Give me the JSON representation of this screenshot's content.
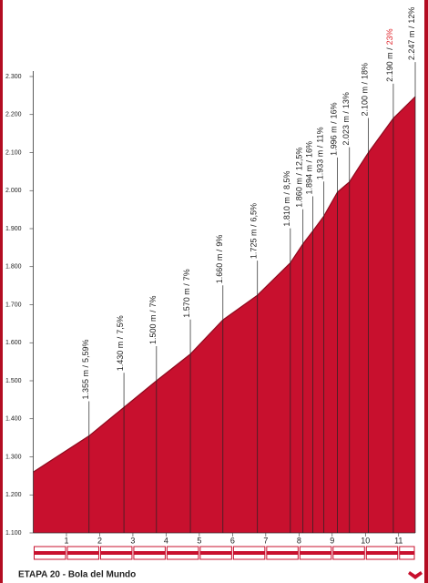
{
  "chart_data": {
    "type": "area",
    "title": "ETAPA 20 - Bola del Mundo",
    "color": "#c8102e",
    "xlim": [
      0,
      11.5
    ],
    "xticks": [
      1,
      2,
      3,
      4,
      5,
      6,
      7,
      8,
      9,
      10,
      11
    ],
    "ylim": [
      1100,
      2300
    ],
    "yticks": [
      {
        "value": 1100,
        "label": "1.100"
      },
      {
        "value": 1200,
        "label": "1.200"
      },
      {
        "value": 1300,
        "label": "1.300"
      },
      {
        "value": 1400,
        "label": "1.400"
      },
      {
        "value": 1500,
        "label": "1.500"
      },
      {
        "value": 1600,
        "label": "1.600"
      },
      {
        "value": 1700,
        "label": "1.700"
      },
      {
        "value": 1800,
        "label": "1.800"
      },
      {
        "value": 1900,
        "label": "1.900"
      },
      {
        "value": 2000,
        "label": "2.000"
      },
      {
        "value": 2100,
        "label": "2.100"
      },
      {
        "value": 2200,
        "label": "2.200"
      },
      {
        "value": 2300,
        "label": "2.300"
      }
    ],
    "series": [
      {
        "x": [
          0,
          1.68,
          2.73,
          3.71,
          4.73,
          5.71,
          6.75,
          7.74,
          8.12,
          8.42,
          8.75,
          9.16,
          9.52,
          10.09,
          10.84,
          11.5
        ],
        "values": [
          1260,
          1355,
          1430,
          1500,
          1570,
          1660,
          1725,
          1810,
          1860,
          1894,
          1933,
          1996,
          2023,
          2100,
          2190,
          2247
        ]
      }
    ],
    "markers": {
      "x": [
        1.68,
        2.73,
        3.71,
        4.73,
        5.71,
        6.75,
        7.74,
        8.12,
        8.42,
        8.75,
        9.16,
        9.52,
        10.09,
        10.84,
        11.5
      ],
      "values": [
        1355,
        1430,
        1500,
        1570,
        1660,
        1725,
        1810,
        1860,
        1894,
        1933,
        1996,
        2023,
        2100,
        2190,
        2247
      ],
      "value_labels": [
        "1.355 m /",
        "1.430 m /",
        "1.500 m /",
        "1.570 m /",
        "1.660 m /",
        "1.725 m /",
        "1.810 m /",
        "1.860 m /",
        "1.894 m /",
        "1.933 m /",
        "1.996 m /",
        "2.023 m /",
        "2.100 m /",
        "2.190 m /",
        "2.247 m /"
      ],
      "grades": [
        "5,59%",
        "7,5%",
        "7%",
        "7%",
        "9%",
        "6,5%",
        "8,5%",
        "12,5%",
        "16%",
        "11%",
        "16%",
        "13%",
        "18%",
        "23%",
        "12%"
      ],
      "grade_colors": [
        "#222",
        "#222",
        "#222",
        "#222",
        "#222",
        "#222",
        "#222",
        "#222",
        "#222",
        "#222",
        "#222",
        "#222",
        "#222",
        "#e0262d",
        "#222"
      ]
    }
  }
}
